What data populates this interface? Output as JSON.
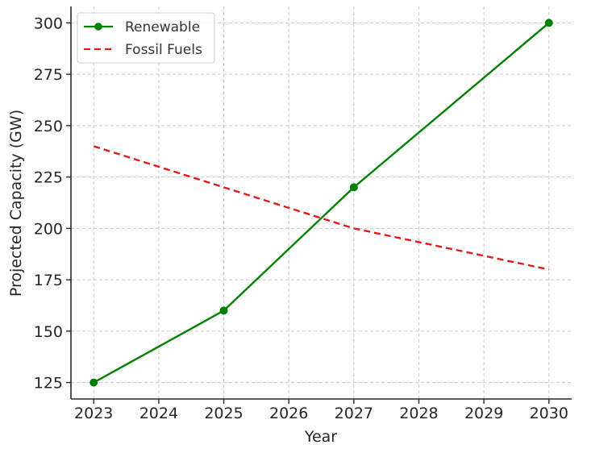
{
  "chart_data": {
    "type": "line",
    "title": "",
    "xlabel": "Year",
    "ylabel": "Projected Capacity (GW)",
    "x": [
      2023,
      2025,
      2027,
      2030
    ],
    "xticks": [
      "2023",
      "2024",
      "2025",
      "2026",
      "2027",
      "2028",
      "2029",
      "2030"
    ],
    "yticks": [
      "125",
      "150",
      "175",
      "200",
      "225",
      "250",
      "275",
      "300"
    ],
    "xlim": [
      2022.65,
      2030.35
    ],
    "ylim": [
      117,
      308
    ],
    "grid": true,
    "legend_position": "top-left",
    "series": [
      {
        "name": "Renewable",
        "values": [
          125,
          160,
          220,
          300
        ],
        "color": "#008000",
        "style": "solid",
        "marker": "circle"
      },
      {
        "name": "Fossil Fuels",
        "values": [
          240,
          220,
          200,
          180
        ],
        "color": "#e31a1c",
        "style": "dashed",
        "marker": "none"
      }
    ]
  }
}
